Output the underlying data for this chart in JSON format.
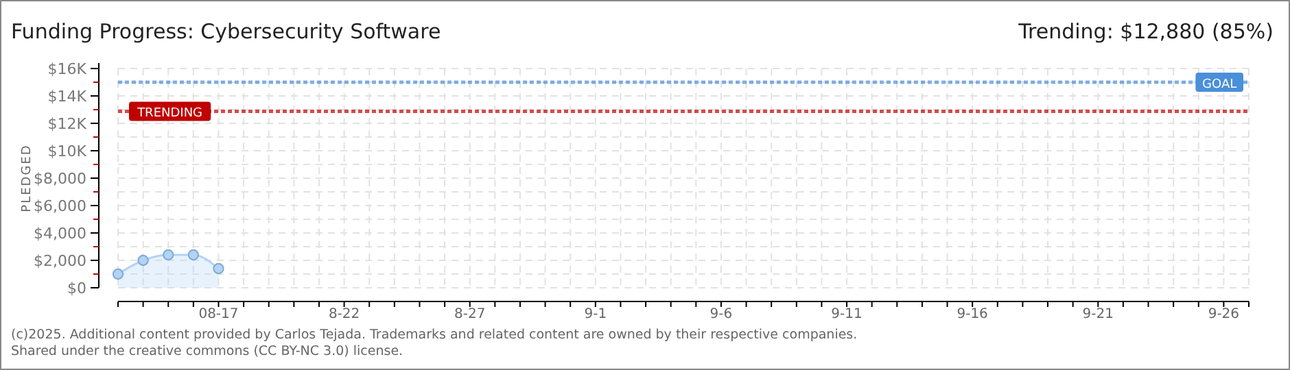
{
  "chart_data": {
    "type": "area",
    "title": "Funding Progress: Cybersecurity Software",
    "subtitle": "Trending: $12,880 (85%)",
    "ylabel": "PLEDGED",
    "x": [
      "--08-13",
      "--08-14",
      "--08-15",
      "--08-16",
      "--08-17"
    ],
    "series": [
      {
        "color": "#b3d3f5",
        "values": [
          1000,
          2000,
          2400,
          2400,
          1400
        ]
      }
    ],
    "marker": "circle",
    "grid": true,
    "xlim": [
      "--08-13",
      "--09-27"
    ],
    "xticks": [
      {
        "value": "--08-13",
        "label": null
      },
      {
        "value": "--08-14",
        "label": null
      },
      {
        "value": "--08-15",
        "label": null
      },
      {
        "value": "--08-16",
        "label": null
      },
      {
        "value": "--08-17",
        "label": "08-17"
      },
      {
        "value": "--08-18",
        "label": null
      },
      {
        "value": "--08-19",
        "label": null
      },
      {
        "value": "--08-20",
        "label": null
      },
      {
        "value": "--08-21",
        "label": null
      },
      {
        "value": "--08-22",
        "label": "8-22"
      },
      {
        "value": "--08-23",
        "label": null
      },
      {
        "value": "--08-24",
        "label": null
      },
      {
        "value": "--08-25",
        "label": null
      },
      {
        "value": "--08-26",
        "label": null
      },
      {
        "value": "--08-27",
        "label": "8-27"
      },
      {
        "value": "--08-28",
        "label": null
      },
      {
        "value": "--08-29",
        "label": null
      },
      {
        "value": "--08-30",
        "label": null
      },
      {
        "value": "--08-31",
        "label": null
      },
      {
        "value": "--09-01",
        "label": "9-1"
      },
      {
        "value": "--09-02",
        "label": null
      },
      {
        "value": "--09-03",
        "label": null
      },
      {
        "value": "--09-04",
        "label": null
      },
      {
        "value": "--09-05",
        "label": null
      },
      {
        "value": "--09-06",
        "label": "9-6"
      },
      {
        "value": "--09-07",
        "label": null
      },
      {
        "value": "--09-08",
        "label": null
      },
      {
        "value": "--09-09",
        "label": null
      },
      {
        "value": "--09-10",
        "label": null
      },
      {
        "value": "--09-11",
        "label": "9-11"
      },
      {
        "value": "--09-12",
        "label": null
      },
      {
        "value": "--09-13",
        "label": null
      },
      {
        "value": "--09-14",
        "label": null
      },
      {
        "value": "--09-15",
        "label": null
      },
      {
        "value": "--09-16",
        "label": "9-16"
      },
      {
        "value": "--09-17",
        "label": null
      },
      {
        "value": "--09-18",
        "label": null
      },
      {
        "value": "--09-19",
        "label": null
      },
      {
        "value": "--09-20",
        "label": null
      },
      {
        "value": "--09-21",
        "label": "9-21"
      },
      {
        "value": "--09-22",
        "label": null
      },
      {
        "value": "--09-23",
        "label": null
      },
      {
        "value": "--09-24",
        "label": null
      },
      {
        "value": "--09-25",
        "label": null
      },
      {
        "value": "--09-26",
        "label": "9-26"
      },
      {
        "value": "--09-27",
        "label": null
      }
    ],
    "ylim": [
      0,
      16000
    ],
    "yticks": [
      {
        "value": 0,
        "label": "$0"
      },
      {
        "value": 1000,
        "label": null
      },
      {
        "value": 2000,
        "label": "$2,000"
      },
      {
        "value": 3000,
        "label": null
      },
      {
        "value": 4000,
        "label": "$4,000"
      },
      {
        "value": 5000,
        "label": null
      },
      {
        "value": 6000,
        "label": "$6,000"
      },
      {
        "value": 7000,
        "label": null
      },
      {
        "value": 8000,
        "label": "$8,000"
      },
      {
        "value": 9000,
        "label": null
      },
      {
        "value": 10000,
        "label": "$10K"
      },
      {
        "value": 11000,
        "label": null
      },
      {
        "value": 12000,
        "label": "$12K"
      },
      {
        "value": 13000,
        "label": null
      },
      {
        "value": 14000,
        "label": "$14K"
      },
      {
        "value": 15000,
        "label": null
      },
      {
        "value": 16000,
        "label": "$16K"
      }
    ],
    "ref_lines": [
      {
        "axis": "y",
        "value": 15000,
        "label": "GOAL",
        "color": "#4a8fd9",
        "line_style": "dotted"
      },
      {
        "axis": "y",
        "value": 12880,
        "label": "TRENDING",
        "color": "#c00000",
        "line_style": "dotted"
      }
    ],
    "annotations": [
      "(c)2025. Additional content provided by Carlos Tejada. Trademarks and related content are owned by their respective companies.",
      "Shared under the creative commons (CC BY-NC 3.0) license."
    ]
  }
}
